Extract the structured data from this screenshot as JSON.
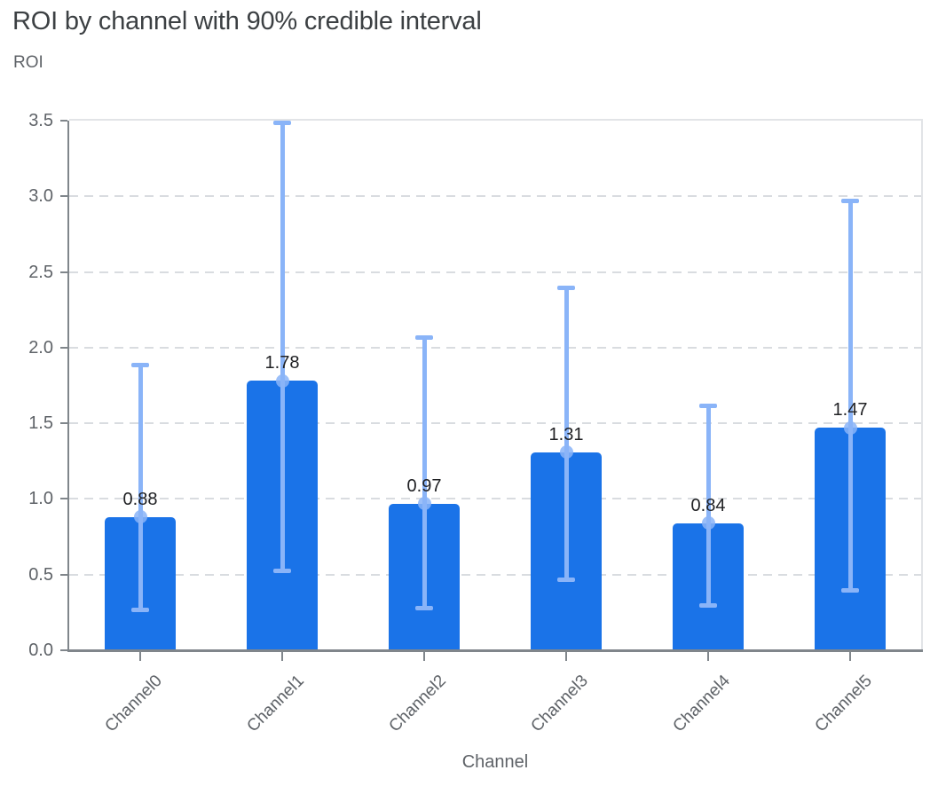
{
  "header": {
    "title": "ROI by channel with 90% credible interval"
  },
  "chart_data": {
    "type": "bar",
    "title": "ROI by channel with 90% credible interval",
    "ylabel": "ROI",
    "xlabel": "Channel",
    "categories": [
      "Channel0",
      "Channel1",
      "Channel2",
      "Channel3",
      "Channel4",
      "Channel5"
    ],
    "values": [
      0.88,
      1.78,
      0.97,
      1.31,
      0.84,
      1.47
    ],
    "value_labels": [
      "0.88",
      "1.78",
      "0.97",
      "1.31",
      "0.84",
      "1.47"
    ],
    "error_low": [
      0.27,
      0.53,
      0.28,
      0.47,
      0.3,
      0.4
    ],
    "error_high": [
      1.89,
      3.49,
      2.07,
      2.4,
      1.62,
      2.97
    ],
    "interval_note": "error bars show 90% credible interval",
    "ylim": [
      0,
      3.5
    ],
    "yticks": [
      "0.0",
      "0.5",
      "1.0",
      "1.5",
      "2.0",
      "2.5",
      "3.0",
      "3.5"
    ],
    "grid": "horizontal dashed",
    "legend": "none",
    "colors": {
      "bar": "#1a73e8",
      "error_bar": "#8ab4f8",
      "title": "#3c4043",
      "axis_text": "#5f6368",
      "value_text": "#202124",
      "gridline": "#d9dce0",
      "axis_line": "#80868b",
      "plot_border": "#e2e4e7"
    }
  }
}
